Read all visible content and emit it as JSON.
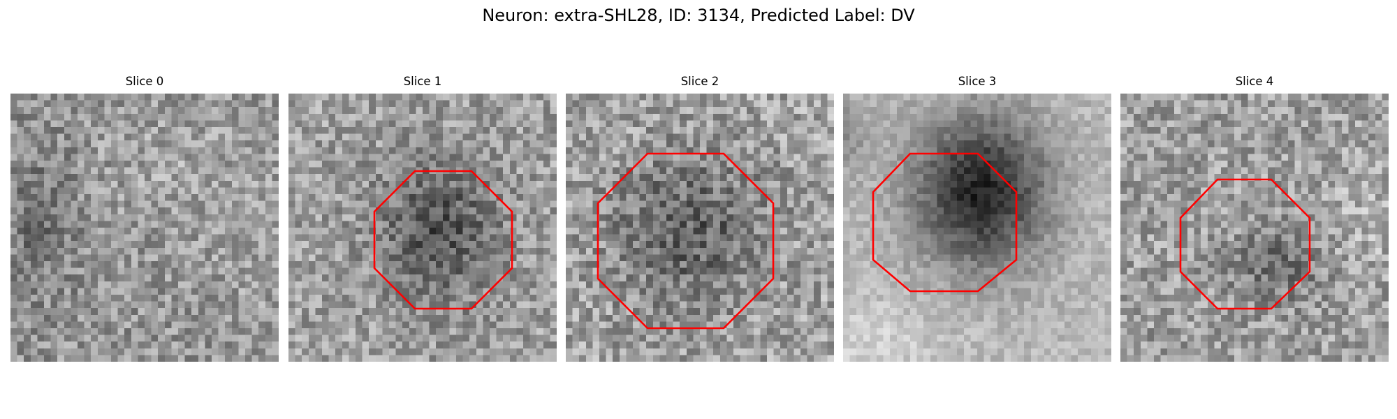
{
  "figure": {
    "title": "Neuron: extra-SHL28, ID: 3134, Predicted Label: DV",
    "outline_color": "#ff0000"
  },
  "slices": [
    {
      "label": "Slice 0",
      "has_outline": false
    },
    {
      "label": "Slice 1",
      "has_outline": true
    },
    {
      "label": "Slice 2",
      "has_outline": true
    },
    {
      "label": "Slice 3",
      "has_outline": true
    },
    {
      "label": "Slice 4",
      "has_outline": true
    }
  ]
}
